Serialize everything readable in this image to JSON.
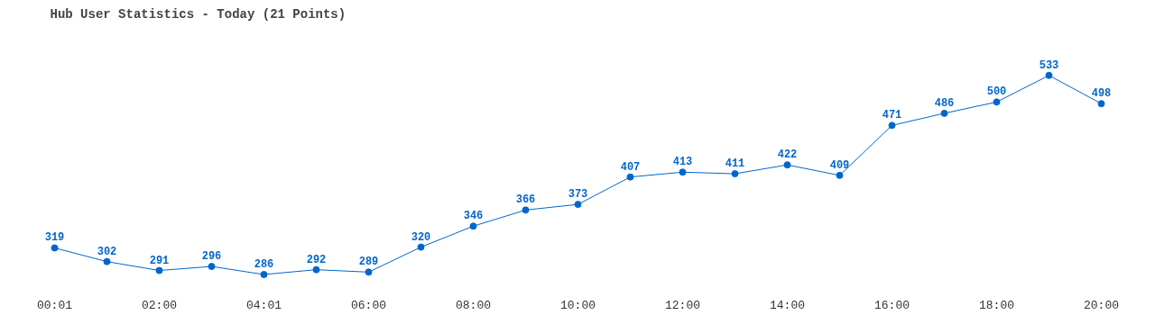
{
  "chart_data": {
    "type": "line",
    "title": "Hub User Statistics - Today (21 Points)",
    "categories": [
      "00:01",
      null,
      "02:00",
      null,
      "04:01",
      null,
      "06:00",
      null,
      "08:00",
      null,
      "10:00",
      null,
      "12:00",
      null,
      "14:00",
      null,
      "16:00",
      null,
      "18:00",
      null,
      "20:00"
    ],
    "series": [
      {
        "color": "#0066cc",
        "values": [
          319,
          302,
          291,
          296,
          286,
          292,
          289,
          320,
          346,
          366,
          373,
          407,
          413,
          411,
          422,
          409,
          471,
          486,
          500,
          533,
          498
        ]
      }
    ],
    "data_labels": true,
    "marker": "circle",
    "grid": false
  }
}
